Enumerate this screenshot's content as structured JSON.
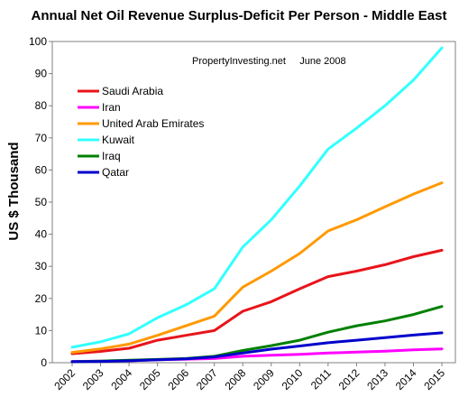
{
  "chart_data": {
    "type": "line",
    "title": "Annual Net Oil Revenue Surplus-Deficit Per Person - Middle East",
    "annotation": "PropertyInvesting.net     June 2008",
    "ylabel": "US $ Thousand",
    "xlabel": "",
    "ylim": [
      0,
      100
    ],
    "yticks": [
      "0",
      "10",
      "20",
      "30",
      "40",
      "50",
      "60",
      "70",
      "80",
      "90",
      "100"
    ],
    "x": [
      "2002",
      "2003",
      "2004",
      "2005",
      "2006",
      "2007",
      "2008",
      "2009",
      "2010",
      "2011",
      "2012",
      "2013",
      "2014",
      "2015"
    ],
    "grid": false,
    "legend": "top-left",
    "series": [
      {
        "name": "Saudi Arabia",
        "color": "#e8141b",
        "values": [
          2.8,
          3.5,
          4.5,
          7.0,
          8.5,
          10.0,
          16.0,
          19.0,
          23.0,
          26.8,
          28.5,
          30.5,
          33.0,
          35.0
        ]
      },
      {
        "name": "Iran",
        "color": "#ff00ff",
        "values": [
          0.4,
          0.5,
          0.6,
          0.9,
          1.1,
          1.3,
          2.0,
          2.3,
          2.6,
          3.0,
          3.3,
          3.6,
          4.0,
          4.3
        ]
      },
      {
        "name": "United Arab Emirates",
        "color": "#ff9900",
        "values": [
          3.2,
          4.3,
          5.8,
          8.5,
          11.5,
          14.5,
          23.5,
          28.5,
          34.0,
          41.0,
          44.5,
          48.5,
          52.5,
          56.0
        ]
      },
      {
        "name": "Kuwait",
        "color": "#33ffff",
        "values": [
          4.8,
          6.5,
          9.0,
          14.0,
          18.0,
          23.0,
          36.0,
          44.5,
          55.0,
          66.5,
          73.0,
          80.0,
          88.0,
          98.0
        ]
      },
      {
        "name": "Iraq",
        "color": "#008000",
        "values": [
          0.3,
          0.5,
          0.8,
          1.0,
          1.3,
          2.0,
          3.8,
          5.3,
          7.0,
          9.5,
          11.5,
          13.0,
          15.0,
          17.5
        ]
      },
      {
        "name": "Qatar",
        "color": "#0000cc",
        "values": [
          0.3,
          0.4,
          0.6,
          0.9,
          1.2,
          1.8,
          3.0,
          4.2,
          5.2,
          6.2,
          7.0,
          7.8,
          8.6,
          9.3
        ]
      }
    ]
  }
}
